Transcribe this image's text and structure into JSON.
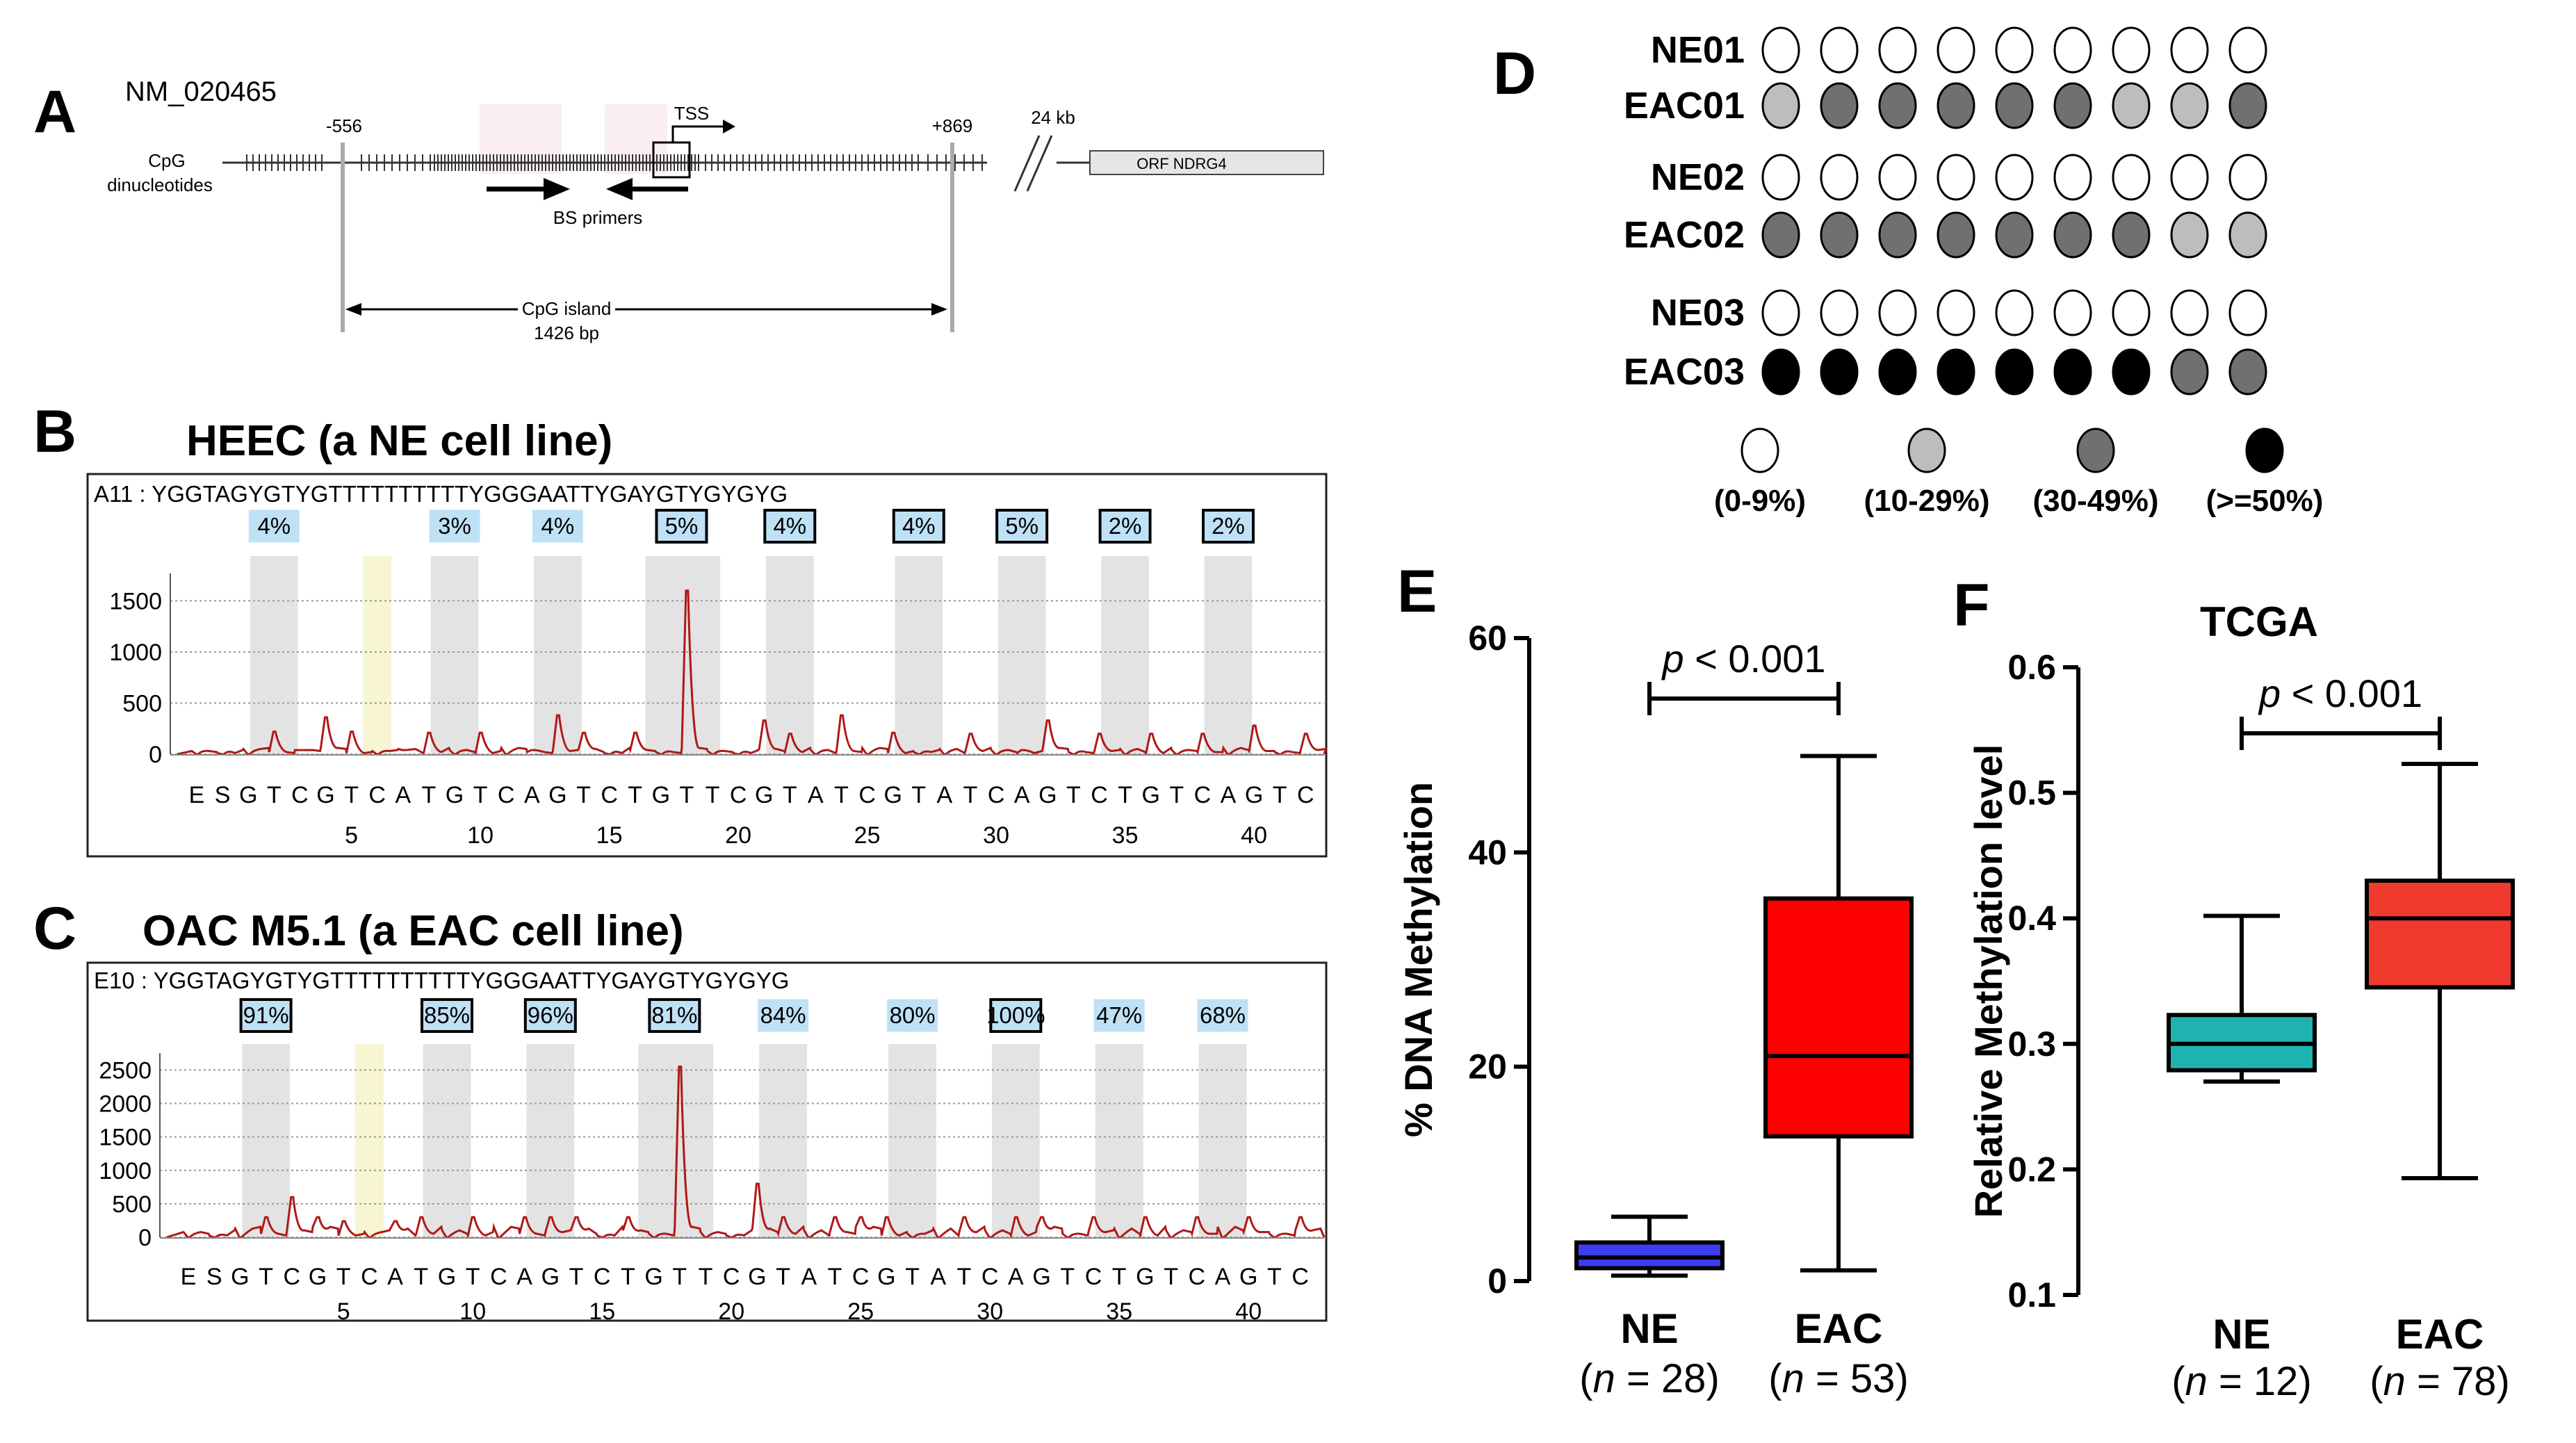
{
  "panel_labels": {
    "a": "A",
    "b": "B",
    "c": "C",
    "d": "D",
    "e": "E",
    "f": "F"
  },
  "panel_a": {
    "accession": "NM_020465",
    "pos_start": "-556",
    "pos_end": "+869",
    "distance": "24 kb",
    "tss": "TSS",
    "cpg_label_1": "CpG",
    "cpg_label_2": "dinucleotides",
    "bs_primers": "BS primers",
    "orf": "ORF NDRG4",
    "island_1": "CpG island",
    "island_2": "1426 bp"
  },
  "pyro": [
    {
      "title": "HEEC (a NE cell line)",
      "seq": "A11 : YGGTAGYGTYGTTTTTTTTTTYGGGAATTYGAYGTYGYGYG",
      "yticks": [
        "1500",
        "1000",
        "500",
        "0"
      ],
      "ymax": 1700,
      "percents": [
        "4%",
        "3%",
        "4%",
        "5%",
        "4%",
        "4%",
        "5%",
        "2%",
        "2%"
      ],
      "boxed": [
        false,
        false,
        false,
        true,
        true,
        true,
        true,
        true,
        true
      ]
    },
    {
      "title": "OAC M5.1 (a EAC cell line)",
      "seq": "E10 : YGGTAGYGTYGTTTTTTTTTTYGGGAATTYGAYGTYGYGYG",
      "yticks": [
        "2500",
        "2000",
        "1500",
        "1000",
        "500",
        "0"
      ],
      "ymax": 2650,
      "percents": [
        "91%",
        "85%",
        "96%",
        "81%",
        "84%",
        "80%",
        "100%",
        "47%",
        "68%"
      ],
      "boxed": [
        true,
        true,
        true,
        true,
        false,
        false,
        true,
        false,
        false
      ]
    }
  ],
  "dispensation": [
    "E",
    "S",
    "G",
    "T",
    "C",
    "G",
    "T",
    "C",
    "A",
    "T",
    "G",
    "T",
    "C",
    "A",
    "G",
    "T",
    "C",
    "T",
    "G",
    "T",
    "T",
    "C",
    "G",
    "T",
    "A",
    "T",
    "C",
    "G",
    "T",
    "A",
    "T",
    "C",
    "A",
    "G",
    "T",
    "C",
    "T",
    "G",
    "T",
    "C",
    "A",
    "G",
    "T",
    "C"
  ],
  "dispensation_numbers": [
    "5",
    "10",
    "15",
    "20",
    "25",
    "30",
    "35",
    "40"
  ],
  "panel_d": {
    "rows": [
      {
        "label": "NE01",
        "levels": [
          0,
          0,
          0,
          0,
          0,
          0,
          0,
          0,
          0
        ]
      },
      {
        "label": "EAC01",
        "levels": [
          1,
          2,
          2,
          2,
          2,
          2,
          1,
          1,
          2
        ]
      },
      {
        "label": "NE02",
        "levels": [
          0,
          0,
          0,
          0,
          0,
          0,
          0,
          0,
          0
        ]
      },
      {
        "label": "EAC02",
        "levels": [
          2,
          2,
          2,
          2,
          2,
          2,
          2,
          1,
          1
        ]
      },
      {
        "label": "NE03",
        "levels": [
          0,
          0,
          0,
          0,
          0,
          0,
          0,
          0,
          0
        ]
      },
      {
        "label": "EAC03",
        "levels": [
          3,
          3,
          3,
          3,
          3,
          3,
          3,
          2,
          2
        ]
      }
    ],
    "legend": [
      "(0-9%)",
      "(10-29%)",
      "(30-49%)",
      "(>=50%)"
    ],
    "colors": [
      "#ffffff",
      "#bdbdbd",
      "#707070",
      "#000000"
    ]
  },
  "chart_data": [
    {
      "type": "box",
      "ylabel": "% DNA Methylation",
      "ylim": [
        0,
        60
      ],
      "yticks": [
        "0",
        "20",
        "40",
        "60"
      ],
      "pvalue_p": "p",
      "pvalue_rest": " < 0.001",
      "groups": [
        {
          "name": "NE",
          "n_open": "(",
          "n_italic": "n",
          "n_rest": " = 28)",
          "color": "#3d3df2",
          "min": 0.5,
          "q1": 1.2,
          "median": 2.2,
          "q3": 3.6,
          "max": 6.0
        },
        {
          "name": "EAC",
          "n_open": "(",
          "n_italic": "n",
          "n_rest": " = 53)",
          "color": "#ff0000",
          "min": 1.0,
          "q1": 13.5,
          "median": 21.0,
          "q3": 35.7,
          "max": 49.0
        }
      ]
    },
    {
      "type": "box",
      "title": "TCGA",
      "ylabel": "Relative Methylation level",
      "ylim": [
        0.1,
        0.6
      ],
      "yticks": [
        "0.1",
        "0.2",
        "0.3",
        "0.4",
        "0.5",
        "0.6"
      ],
      "pvalue_p": "p",
      "pvalue_rest": " < 0.001",
      "groups": [
        {
          "name": "NE",
          "n_open": "(",
          "n_italic": "n",
          "n_rest": " = 12)",
          "color": "#1fb3b0",
          "min": 0.27,
          "q1": 0.279,
          "median": 0.3,
          "q3": 0.323,
          "max": 0.402
        },
        {
          "name": "EAC",
          "n_open": "(",
          "n_italic": "n",
          "n_rest": " = 78)",
          "color": "#f03a2e",
          "min": 0.193,
          "q1": 0.345,
          "median": 0.4,
          "q3": 0.43,
          "max": 0.523
        }
      ]
    }
  ]
}
